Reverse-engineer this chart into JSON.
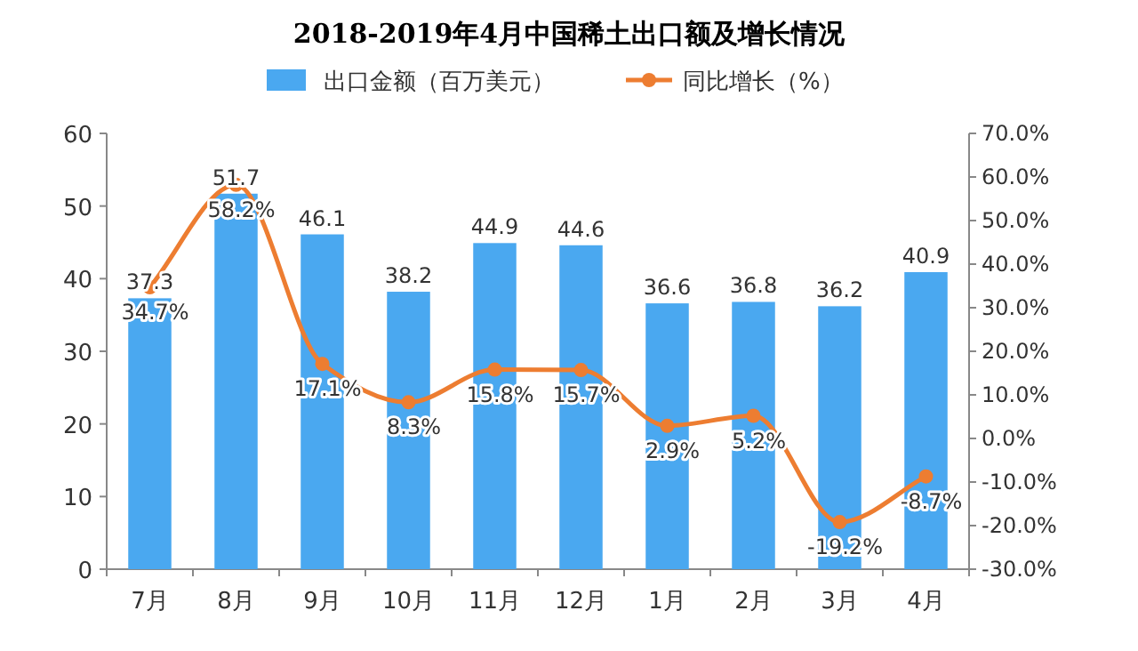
{
  "chart_data": {
    "type": "bar",
    "title": "2018-2019年4月中国稀土出口额及增长情况",
    "categories": [
      "7月",
      "8月",
      "9月",
      "10月",
      "11月",
      "12月",
      "1月",
      "2月",
      "3月",
      "4月"
    ],
    "series": [
      {
        "name": "出口金额（百万美元）",
        "color": "#4aa8f0",
        "values": [
          37.3,
          51.7,
          46.1,
          38.2,
          44.9,
          44.6,
          36.6,
          36.8,
          36.2,
          40.9
        ],
        "value_labels": [
          "37.3",
          "51.7",
          "46.1",
          "38.2",
          "44.9",
          "44.6",
          "36.6",
          "36.8",
          "36.2",
          "40.9"
        ]
      },
      {
        "name": "同比增长（%）",
        "type": "line",
        "axis": "y2",
        "color": "#ed7d31",
        "marker": "circle",
        "values": [
          34.7,
          58.2,
          17.1,
          8.3,
          15.8,
          15.7,
          2.9,
          5.2,
          -19.2,
          -8.7
        ],
        "value_labels": [
          "34.7%",
          "58.2%",
          "17.1%",
          "8.3%",
          "15.8%",
          "15.7%",
          "2.9%",
          "5.2%",
          "-19.2%",
          "-8.7%"
        ]
      }
    ],
    "ylim": [
      0,
      60
    ],
    "yticks": [
      0,
      10,
      20,
      30,
      40,
      50,
      60
    ],
    "y2lim": [
      -30,
      70
    ],
    "y2ticks": [
      {
        "value": -30,
        "label": "-30.0%"
      },
      {
        "value": -20,
        "label": "-20.0%"
      },
      {
        "value": -10,
        "label": "-10.0%"
      },
      {
        "value": 0,
        "label": "0.0%"
      },
      {
        "value": 10,
        "label": "10.0%"
      },
      {
        "value": 20,
        "label": "20.0%"
      },
      {
        "value": 30,
        "label": "30.0%"
      },
      {
        "value": 40,
        "label": "40.0%"
      },
      {
        "value": 50,
        "label": "50.0%"
      },
      {
        "value": 60,
        "label": "60.0%"
      },
      {
        "value": 70,
        "label": "70.0%"
      }
    ],
    "grid": false,
    "legend": "top"
  }
}
